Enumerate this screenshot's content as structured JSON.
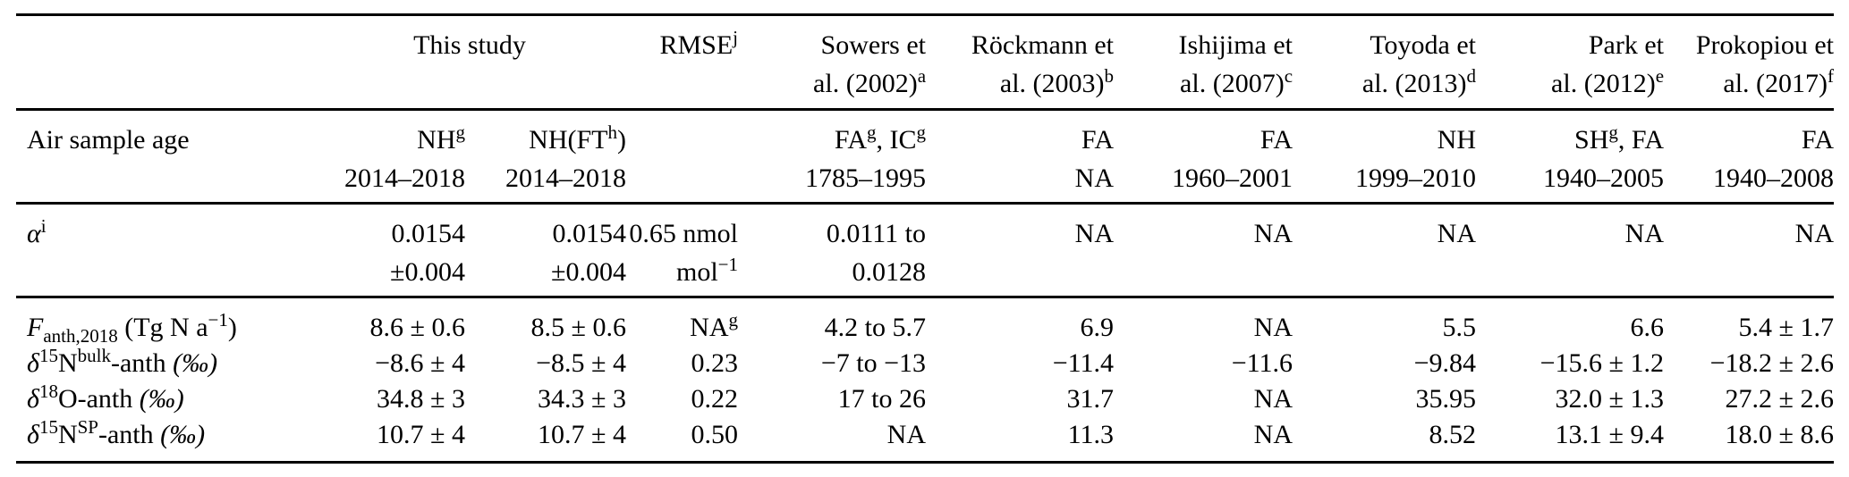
{
  "table": {
    "header": {
      "this_study": [
        [
          {
            "t": "This study"
          }
        ]
      ],
      "rmse": [
        [
          {
            "t": "RMSE"
          },
          {
            "t": "j",
            "s": "sup"
          }
        ]
      ],
      "refs": [
        [
          [
            {
              "t": "Sowers et"
            }
          ],
          [
            {
              "t": "al. (2002)"
            },
            {
              "t": "a",
              "s": "sup"
            }
          ]
        ],
        [
          [
            {
              "t": "Röckmann et"
            }
          ],
          [
            {
              "t": "al. (2003)"
            },
            {
              "t": "b",
              "s": "sup"
            }
          ]
        ],
        [
          [
            {
              "t": "Ishijima et"
            }
          ],
          [
            {
              "t": "al. (2007)"
            },
            {
              "t": "c",
              "s": "sup"
            }
          ]
        ],
        [
          [
            {
              "t": "Toyoda et"
            }
          ],
          [
            {
              "t": "al. (2013)"
            },
            {
              "t": "d",
              "s": "sup"
            }
          ]
        ],
        [
          [
            {
              "t": "Park et"
            }
          ],
          [
            {
              "t": "al. (2012)"
            },
            {
              "t": "e",
              "s": "sup"
            }
          ]
        ],
        [
          [
            {
              "t": "Prokopiou et"
            }
          ],
          [
            {
              "t": "al. (2017)"
            },
            {
              "t": "f",
              "s": "sup"
            }
          ]
        ]
      ]
    },
    "rows": {
      "air_sample_age": {
        "label": [
          [
            {
              "t": "Air sample age"
            }
          ]
        ],
        "cells": [
          [
            [
              {
                "t": "NH"
              },
              {
                "t": "g",
                "s": "sup"
              }
            ],
            [
              {
                "t": "2014–2018"
              }
            ]
          ],
          [
            [
              {
                "t": "NH(FT"
              },
              {
                "t": "h",
                "s": "sup"
              },
              {
                "t": ")"
              }
            ],
            [
              {
                "t": "2014–2018"
              }
            ]
          ],
          [],
          [
            [
              {
                "t": "FA"
              },
              {
                "t": "g",
                "s": "sup"
              },
              {
                "t": ", IC"
              },
              {
                "t": "g",
                "s": "sup"
              }
            ],
            [
              {
                "t": "1785–1995"
              }
            ]
          ],
          [
            [
              {
                "t": "FA"
              }
            ],
            [
              {
                "t": "NA"
              }
            ]
          ],
          [
            [
              {
                "t": "FA"
              }
            ],
            [
              {
                "t": "1960–2001"
              }
            ]
          ],
          [
            [
              {
                "t": "NH"
              }
            ],
            [
              {
                "t": "1999–2010"
              }
            ]
          ],
          [
            [
              {
                "t": "SH"
              },
              {
                "t": "g",
                "s": "sup"
              },
              {
                "t": ", FA"
              }
            ],
            [
              {
                "t": "1940–2005"
              }
            ]
          ],
          [
            [
              {
                "t": "FA"
              }
            ],
            [
              {
                "t": "1940–2008"
              }
            ]
          ]
        ]
      },
      "alpha": {
        "label": [
          [
            {
              "t": "α",
              "s": "i"
            },
            {
              "t": "i",
              "s": "sup"
            }
          ]
        ],
        "cells": [
          [
            [
              {
                "t": "0.0154"
              }
            ],
            [
              {
                "t": "±0.004"
              }
            ]
          ],
          [
            [
              {
                "t": "0.0154"
              }
            ],
            [
              {
                "t": "±0.004"
              }
            ]
          ],
          [
            [
              {
                "t": "0.65 nmol"
              }
            ],
            [
              {
                "t": "mol"
              },
              {
                "t": "−1",
                "s": "sup"
              }
            ]
          ],
          [
            [
              {
                "t": "0.0111 to"
              }
            ],
            [
              {
                "t": "0.0128"
              }
            ]
          ],
          [
            [
              {
                "t": "NA"
              }
            ]
          ],
          [
            [
              {
                "t": "NA"
              }
            ]
          ],
          [
            [
              {
                "t": "NA"
              }
            ]
          ],
          [
            [
              {
                "t": "NA"
              }
            ]
          ],
          [
            [
              {
                "t": "NA"
              }
            ]
          ]
        ]
      },
      "f_anth": {
        "label": [
          [
            {
              "t": "F",
              "s": "i"
            },
            {
              "t": "anth,2018",
              "s": "sub"
            },
            {
              "t": " (Tg N a"
            },
            {
              "t": "−1",
              "s": "sup"
            },
            {
              "t": ")"
            }
          ]
        ],
        "cells": [
          [
            [
              {
                "t": "8.6 ± 0.6"
              }
            ]
          ],
          [
            [
              {
                "t": "8.5 ± 0.6"
              }
            ]
          ],
          [
            [
              {
                "t": "NA"
              },
              {
                "t": "g",
                "s": "sup"
              }
            ]
          ],
          [
            [
              {
                "t": "4.2 to 5.7"
              }
            ]
          ],
          [
            [
              {
                "t": "6.9"
              }
            ]
          ],
          [
            [
              {
                "t": "NA"
              }
            ]
          ],
          [
            [
              {
                "t": "5.5"
              }
            ]
          ],
          [
            [
              {
                "t": "6.6"
              }
            ]
          ],
          [
            [
              {
                "t": "5.4 ± 1.7"
              }
            ]
          ]
        ]
      },
      "d15n_bulk": {
        "label": [
          [
            {
              "t": "δ",
              "s": "i"
            },
            {
              "t": "15",
              "s": "sup"
            },
            {
              "t": "N"
            },
            {
              "t": "bulk",
              "s": "sup"
            },
            {
              "t": "-anth "
            },
            {
              "t": "(‰)",
              "s": "i"
            }
          ]
        ],
        "cells": [
          [
            [
              {
                "t": "−8.6 ± 4"
              }
            ]
          ],
          [
            [
              {
                "t": "−8.5 ± 4"
              }
            ]
          ],
          [
            [
              {
                "t": "0.23"
              }
            ]
          ],
          [
            [
              {
                "t": "−7 to −13"
              }
            ]
          ],
          [
            [
              {
                "t": "−11.4"
              }
            ]
          ],
          [
            [
              {
                "t": "−11.6"
              }
            ]
          ],
          [
            [
              {
                "t": "−9.84"
              }
            ]
          ],
          [
            [
              {
                "t": "−15.6 ± 1.2"
              }
            ]
          ],
          [
            [
              {
                "t": "−18.2 ± 2.6"
              }
            ]
          ]
        ]
      },
      "d18o": {
        "label": [
          [
            {
              "t": "δ",
              "s": "i"
            },
            {
              "t": "18",
              "s": "sup"
            },
            {
              "t": "O-anth "
            },
            {
              "t": "(‰)",
              "s": "i"
            }
          ]
        ],
        "cells": [
          [
            [
              {
                "t": "34.8 ± 3"
              }
            ]
          ],
          [
            [
              {
                "t": "34.3 ± 3"
              }
            ]
          ],
          [
            [
              {
                "t": "0.22"
              }
            ]
          ],
          [
            [
              {
                "t": "17 to 26"
              }
            ]
          ],
          [
            [
              {
                "t": "31.7"
              }
            ]
          ],
          [
            [
              {
                "t": "NA"
              }
            ]
          ],
          [
            [
              {
                "t": "35.95"
              }
            ]
          ],
          [
            [
              {
                "t": "32.0 ± 1.3"
              }
            ]
          ],
          [
            [
              {
                "t": "27.2 ± 2.6"
              }
            ]
          ]
        ]
      },
      "d15n_sp": {
        "label": [
          [
            {
              "t": "δ",
              "s": "i"
            },
            {
              "t": "15",
              "s": "sup"
            },
            {
              "t": "N"
            },
            {
              "t": "SP",
              "s": "sup"
            },
            {
              "t": "-anth "
            },
            {
              "t": "(‰)",
              "s": "i"
            }
          ]
        ],
        "cells": [
          [
            [
              {
                "t": "10.7 ± 4"
              }
            ]
          ],
          [
            [
              {
                "t": "10.7 ± 4"
              }
            ]
          ],
          [
            [
              {
                "t": "0.50"
              }
            ]
          ],
          [
            [
              {
                "t": "NA"
              }
            ]
          ],
          [
            [
              {
                "t": "11.3"
              }
            ]
          ],
          [
            [
              {
                "t": "NA"
              }
            ]
          ],
          [
            [
              {
                "t": "8.52"
              }
            ]
          ],
          [
            [
              {
                "t": "13.1 ± 9.4"
              }
            ]
          ],
          [
            [
              {
                "t": "18.0 ± 8.6"
              }
            ]
          ]
        ]
      }
    }
  }
}
